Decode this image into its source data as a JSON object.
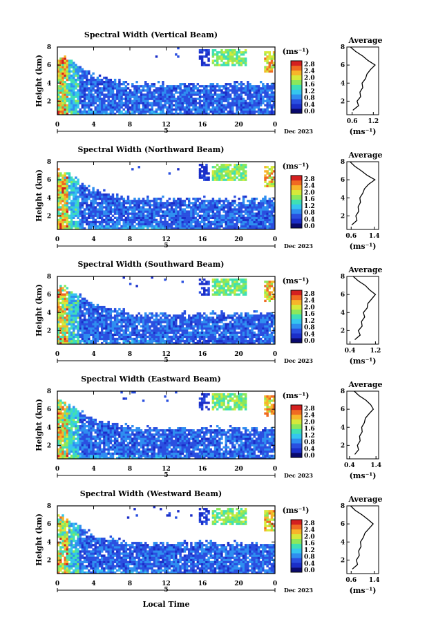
{
  "figure": {
    "xlabel": "Local Time",
    "date_label": "Dec 2023",
    "day_label": "5",
    "ylabel": "Height (km)",
    "unit_label": "(ms⁻¹)",
    "avg_title": "Average",
    "avg_xlabel": "(ms⁻¹)",
    "colorbar_ticks": [
      "2.8",
      "2.4",
      "2.0",
      "1.6",
      "1.2",
      "0.8",
      "0.4",
      "0.0"
    ],
    "colorbar_colors": [
      "#0a0a6e",
      "#1b2ec8",
      "#2a4fe0",
      "#2f8ef0",
      "#35c6ee",
      "#3fe0b4",
      "#8ce85a",
      "#d6e93a",
      "#f7b52a",
      "#f06a22",
      "#d42020"
    ]
  },
  "chart_data": [
    {
      "type": "heatmap",
      "title": "Spectral Width (Vertical Beam)",
      "xlabel": "Local Time",
      "ylabel": "Height (km)",
      "xticks": [
        "0",
        "4",
        "8",
        "12",
        "16",
        "20",
        "0"
      ],
      "yticks": [
        "2",
        "4",
        "6",
        "8"
      ],
      "xlim": [
        0,
        24
      ],
      "ylim": [
        0.5,
        8
      ],
      "value_range": [
        0.0,
        2.8
      ],
      "average_profile": {
        "title": "Average",
        "xlabel": "(ms⁻¹)",
        "xticks": [
          "0.6",
          "1.2"
        ],
        "xlim": [
          0.45,
          1.35
        ],
        "heights": [
          1.0,
          1.5,
          2.0,
          2.5,
          3.0,
          3.5,
          4.0,
          4.5,
          5.0,
          5.5,
          6.0,
          6.5,
          7.0,
          7.5,
          8.0
        ],
        "values": [
          0.62,
          0.78,
          0.74,
          0.84,
          0.82,
          0.9,
          0.88,
          0.98,
          1.02,
          1.12,
          1.25,
          1.05,
          0.9,
          0.7,
          0.55
        ]
      }
    },
    {
      "type": "heatmap",
      "title": "Spectral Width (Northward Beam)",
      "xlabel": "Local Time",
      "ylabel": "Height (km)",
      "xticks": [
        "0",
        "4",
        "8",
        "12",
        "16",
        "20",
        "0"
      ],
      "yticks": [
        "2",
        "4",
        "6",
        "8"
      ],
      "xlim": [
        0,
        24
      ],
      "ylim": [
        0.5,
        8
      ],
      "value_range": [
        0.0,
        2.8
      ],
      "average_profile": {
        "title": "Average",
        "xlabel": "(ms⁻¹)",
        "xticks": [
          "0.6",
          "1.4"
        ],
        "xlim": [
          0.45,
          1.55
        ],
        "heights": [
          1.0,
          1.5,
          2.0,
          2.5,
          3.0,
          3.5,
          4.0,
          4.5,
          5.0,
          5.5,
          6.0,
          6.5,
          7.0,
          7.5,
          8.0
        ],
        "values": [
          0.62,
          0.8,
          0.76,
          0.86,
          0.84,
          0.92,
          0.9,
          1.0,
          1.06,
          1.2,
          1.42,
          1.15,
          0.95,
          0.72,
          0.56
        ]
      }
    },
    {
      "type": "heatmap",
      "title": "Spectral Width (Southward Beam)",
      "xlabel": "Local Time",
      "ylabel": "Height (km)",
      "xticks": [
        "0",
        "4",
        "8",
        "12",
        "16",
        "20",
        "0"
      ],
      "yticks": [
        "2",
        "4",
        "6",
        "8"
      ],
      "xlim": [
        0,
        24
      ],
      "ylim": [
        0.5,
        8
      ],
      "value_range": [
        0.0,
        2.8
      ],
      "average_profile": {
        "title": "Average",
        "xlabel": "(ms⁻¹)",
        "xticks": [
          "0.4",
          "1.2"
        ],
        "xlim": [
          0.3,
          1.3
        ],
        "heights": [
          1.0,
          1.5,
          2.0,
          2.5,
          3.0,
          3.5,
          4.0,
          4.5,
          5.0,
          5.5,
          6.0,
          6.5,
          7.0,
          7.5,
          8.0
        ],
        "values": [
          0.55,
          0.72,
          0.66,
          0.78,
          0.76,
          0.86,
          0.82,
          0.94,
          0.96,
          1.08,
          1.2,
          1.02,
          0.88,
          0.66,
          0.5
        ]
      }
    },
    {
      "type": "heatmap",
      "title": "Spectral Width (Eastward Beam)",
      "xlabel": "Local Time",
      "ylabel": "Height (km)",
      "xticks": [
        "0",
        "4",
        "8",
        "12",
        "16",
        "20",
        "0"
      ],
      "yticks": [
        "2",
        "4",
        "6",
        "8"
      ],
      "xlim": [
        0,
        24
      ],
      "ylim": [
        0.5,
        8
      ],
      "value_range": [
        0.0,
        2.8
      ],
      "average_profile": {
        "title": "Average",
        "xlabel": "(ms⁻¹)",
        "xticks": [
          "0.4",
          "1.4"
        ],
        "xlim": [
          0.3,
          1.5
        ],
        "heights": [
          1.0,
          1.5,
          2.0,
          2.5,
          3.0,
          3.5,
          4.0,
          4.5,
          5.0,
          5.5,
          6.0,
          6.5,
          7.0,
          7.5,
          8.0
        ],
        "values": [
          0.6,
          0.74,
          0.7,
          0.8,
          0.78,
          0.88,
          0.86,
          0.96,
          1.0,
          1.14,
          1.3,
          1.2,
          1.02,
          0.76,
          0.58
        ]
      }
    },
    {
      "type": "heatmap",
      "title": "Spectral Width (Westward Beam)",
      "xlabel": "Local Time",
      "ylabel": "Height (km)",
      "xticks": [
        "0",
        "4",
        "8",
        "12",
        "16",
        "20",
        "0"
      ],
      "yticks": [
        "2",
        "4",
        "6",
        "8"
      ],
      "xlim": [
        0,
        24
      ],
      "ylim": [
        0.5,
        8
      ],
      "value_range": [
        0.0,
        2.8
      ],
      "average_profile": {
        "title": "Average",
        "xlabel": "(ms⁻¹)",
        "xticks": [
          "0.6",
          "1.4"
        ],
        "xlim": [
          0.45,
          1.55
        ],
        "heights": [
          1.0,
          1.5,
          2.0,
          2.5,
          3.0,
          3.5,
          4.0,
          4.5,
          5.0,
          5.5,
          6.0,
          6.5,
          7.0,
          7.5,
          8.0
        ],
        "values": [
          0.64,
          0.82,
          0.78,
          0.88,
          0.86,
          0.94,
          0.92,
          1.02,
          1.08,
          1.22,
          1.36,
          1.18,
          0.98,
          0.74,
          0.58
        ]
      }
    }
  ]
}
